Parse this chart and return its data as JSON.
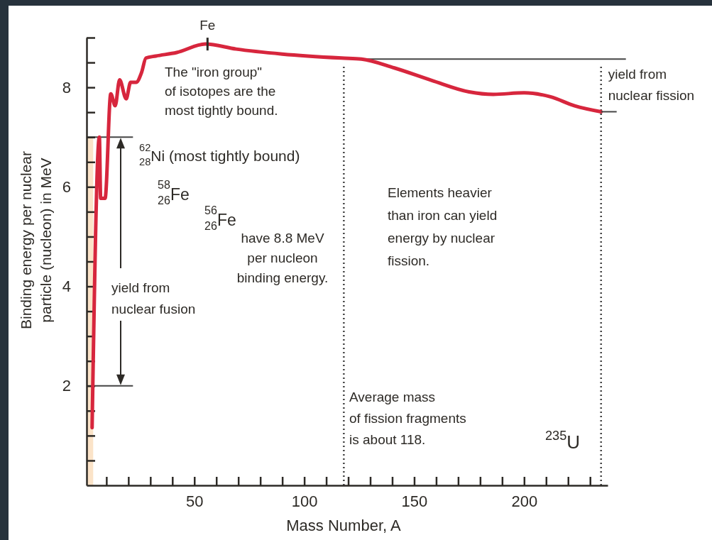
{
  "chart_data": {
    "type": "line",
    "xlabel": "Mass Number, A",
    "ylabel": "Binding energy per nuclear\nparticle (nucleon) in MeV",
    "x": [
      3.5,
      6.8,
      7.4,
      9.4,
      12,
      14,
      16,
      19,
      21,
      23.5,
      26,
      28,
      32.5,
      42,
      55,
      69,
      90,
      117,
      126,
      141,
      158,
      175,
      186,
      200,
      212,
      223,
      235
    ],
    "series": [
      {
        "color": "#d7263d",
        "values": [
          1.16,
          7.0,
          5.77,
          5.77,
          7.87,
          7.63,
          8.15,
          7.77,
          8.1,
          8.1,
          8.3,
          8.59,
          8.63,
          8.7,
          8.87,
          8.77,
          8.67,
          8.59,
          8.57,
          8.39,
          8.14,
          7.91,
          7.86,
          7.89,
          7.81,
          7.63,
          7.51
        ]
      }
    ],
    "marker": "none",
    "line_style": "solid",
    "xlim": [
      1,
      238
    ],
    "ylim": [
      0,
      9
    ],
    "xticks": [
      {
        "value": 10,
        "label": null
      },
      {
        "value": 20,
        "label": null
      },
      {
        "value": 30,
        "label": null
      },
      {
        "value": 40,
        "label": null
      },
      50,
      {
        "value": 60,
        "label": null
      },
      {
        "value": 70,
        "label": null
      },
      {
        "value": 80,
        "label": null
      },
      {
        "value": 90,
        "label": null
      },
      100,
      {
        "value": 110,
        "label": null
      },
      {
        "value": 120,
        "label": null
      },
      {
        "value": 130,
        "label": null
      },
      {
        "value": 140,
        "label": null
      },
      150,
      {
        "value": 160,
        "label": null
      },
      {
        "value": 170,
        "label": null
      },
      {
        "value": 180,
        "label": null
      },
      {
        "value": 190,
        "label": null
      },
      200,
      {
        "value": 210,
        "label": null
      },
      {
        "value": 220,
        "label": null
      },
      {
        "value": 230,
        "label": null
      }
    ],
    "yticks": [
      {
        "value": 0.5,
        "label": null
      },
      {
        "value": 1,
        "label": null
      },
      {
        "value": 1.5,
        "label": null
      },
      2,
      {
        "value": 2.5,
        "label": null
      },
      {
        "value": 3,
        "label": null
      },
      {
        "value": 3.5,
        "label": null
      },
      4,
      {
        "value": 4.5,
        "label": null
      },
      {
        "value": 5,
        "label": null
      },
      {
        "value": 5.5,
        "label": null
      },
      6,
      {
        "value": 6.5,
        "label": null
      },
      {
        "value": 7,
        "label": null
      },
      {
        "value": 7.5,
        "label": null
      },
      8,
      {
        "value": 8.5,
        "label": null
      },
      {
        "value": 9,
        "label": null
      }
    ],
    "ref_lines": [
      {
        "axis": "y",
        "value": 8.57,
        "color": "#444444",
        "line_style": "solid"
      },
      {
        "axis": "y",
        "value": 7.0,
        "color": "#444444",
        "line_style": "solid"
      },
      {
        "axis": "y",
        "value": 2.0,
        "color": "#444444",
        "line_style": "solid"
      },
      {
        "axis": "x",
        "value": 118,
        "color": "#444444",
        "line_style": "dotted"
      },
      {
        "axis": "x",
        "value": 235,
        "color": "#444444",
        "line_style": "dotted"
      }
    ],
    "bands": [
      {
        "axis": "x",
        "from": 1,
        "to": 4,
        "color": "#fbe3c8"
      }
    ],
    "annotations": [
      {
        "text": "Fe",
        "x": 56,
        "y": 8.87
      },
      "The \"iron group\"\nof isotopes are the\nmost tightly bound.",
      "$^{62}$$_{28}$Ni  (most tightly bound)",
      "$^{58}$$_{26}$Fe",
      "$^{56}$$_{26}$Fe",
      "have 8.8 MeV\nper nucleon\nbinding energy.",
      "yield from\nnuclear fusion",
      "Elements heavier\nthan iron can yield\nenergy by nuclear\nfission.",
      {
        "text": "yield from\nnuclear fission",
        "x": 235,
        "y": 7.51
      },
      "Average mass\nof fission fragments\nis about 118.",
      "$^{235}$U"
    ]
  }
}
